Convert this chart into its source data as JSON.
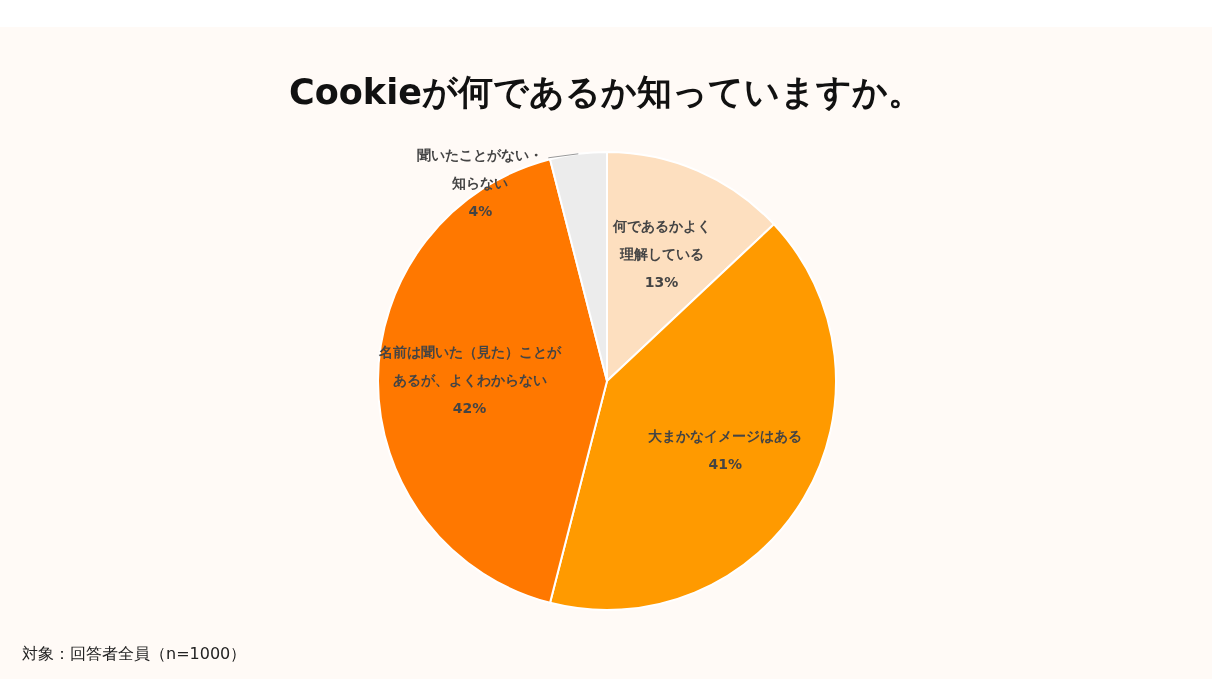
{
  "chart_data": {
    "type": "pie",
    "title": "Cookieが何であるか知っていますか。",
    "categories": [
      "何であるかよく理解している",
      "大まかなイメージはある",
      "名前は聞いた（見た）ことがあるが、よくわからない",
      "聞いたことがない・知らない"
    ],
    "values": [
      13,
      41,
      42,
      4
    ],
    "value_labels": [
      "13%",
      "41%",
      "42%",
      "4%"
    ],
    "colors": [
      "#fddfbf",
      "#ff9a00",
      "#ff7800",
      "#ececec"
    ],
    "annotations": [
      "対象：回答者全員（n=1000）"
    ]
  }
}
